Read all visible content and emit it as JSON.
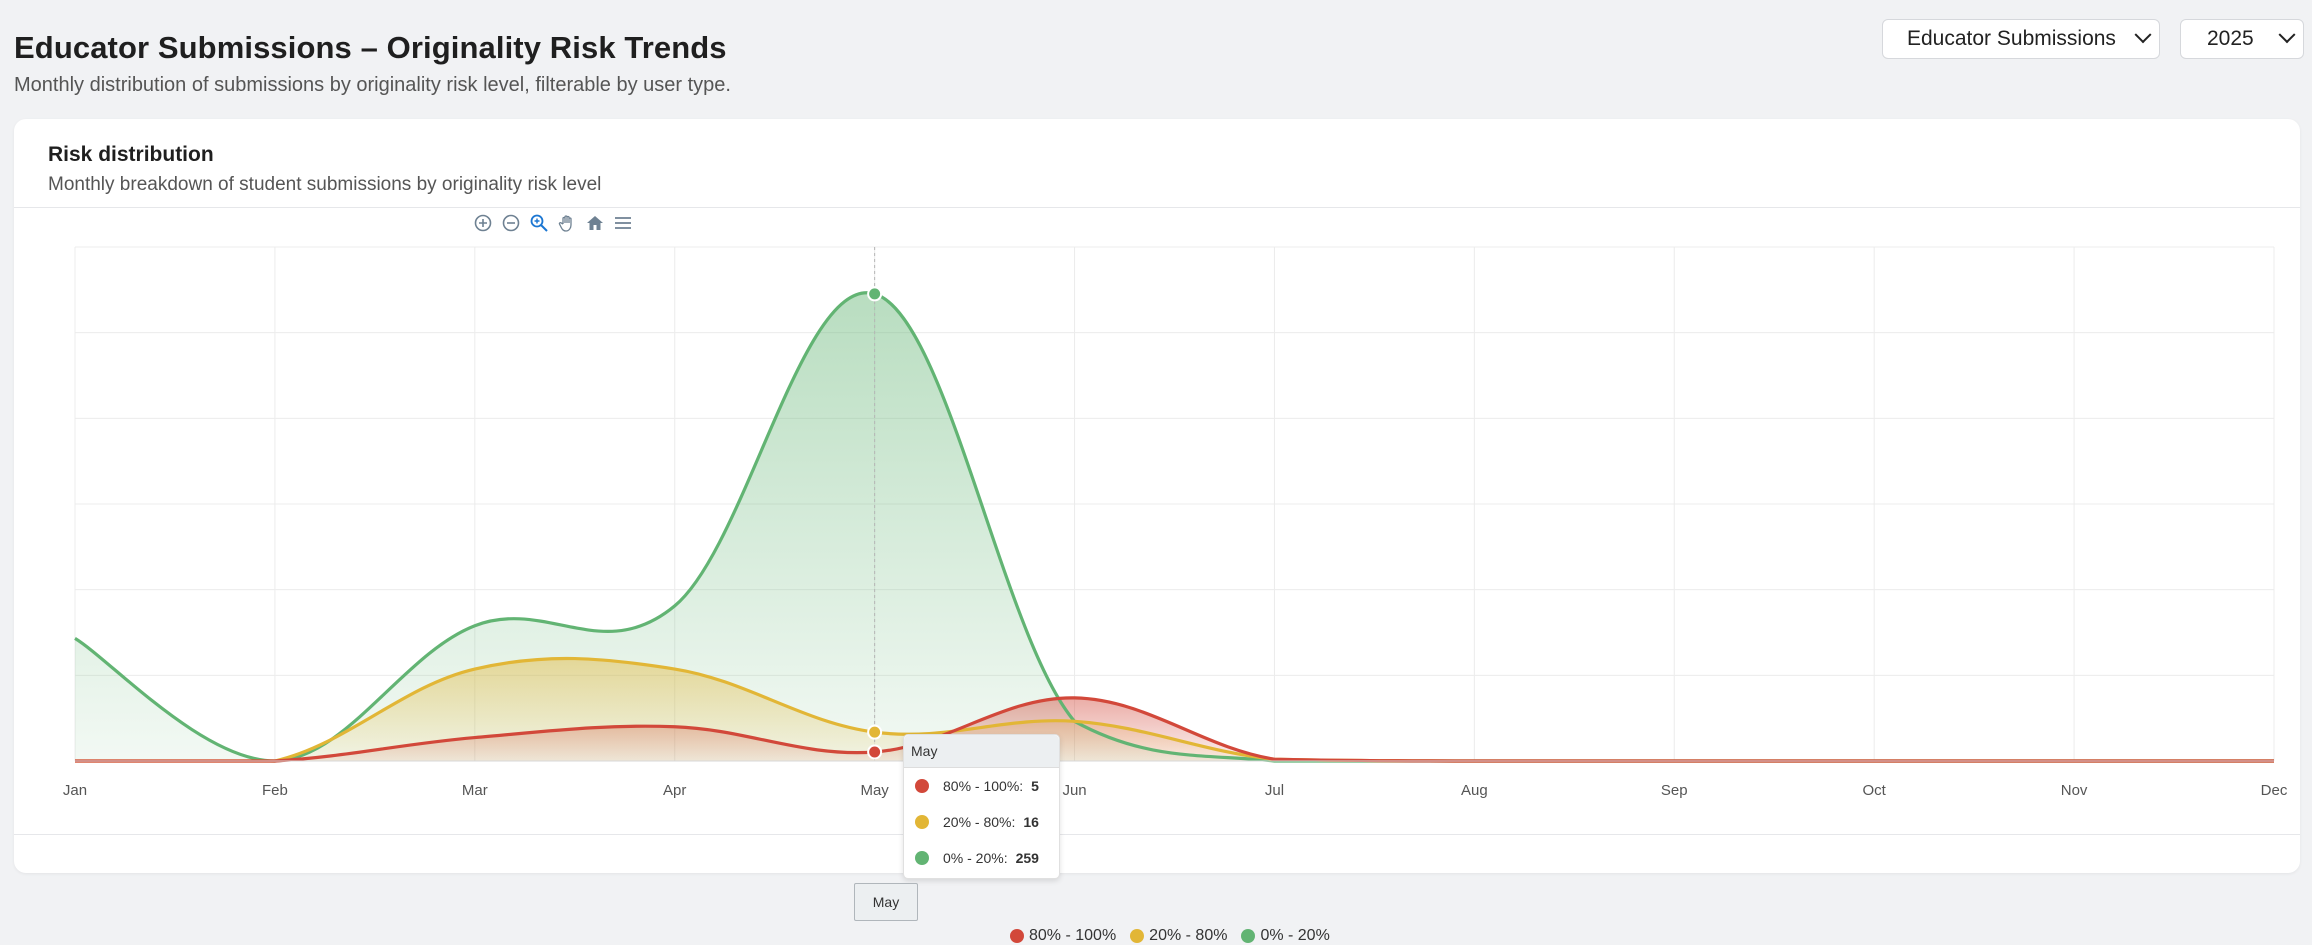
{
  "header": {
    "title": "Educator Submissions – Originality Risk Trends",
    "subtitle": "Monthly distribution of submissions by originality risk level, filterable by user type."
  },
  "filters": {
    "user_type": "Educator Submissions",
    "year": "2025"
  },
  "card": {
    "title": "Risk distribution",
    "subtitle": "Monthly breakdown of student submissions by originality risk level"
  },
  "toolbar": [
    "zoom-in",
    "zoom-out",
    "selection-zoom",
    "pan",
    "reset-zoom",
    "menu"
  ],
  "tooltip": {
    "title": "May",
    "rows": [
      {
        "label": "80% - 100%:",
        "value": "5"
      },
      {
        "label": "20% - 80%:",
        "value": "16"
      },
      {
        "label": "0% - 20%:",
        "value": "259"
      }
    ]
  },
  "crosshair_label": "May",
  "chart_data": {
    "type": "area",
    "curve": "smooth",
    "categories": [
      "Jan",
      "Feb",
      "Mar",
      "Apr",
      "May",
      "Jun",
      "Jul",
      "Aug",
      "Sep",
      "Oct",
      "Nov",
      "Dec"
    ],
    "ylim": [
      0,
      285
    ],
    "series": [
      {
        "name": "80% - 100%",
        "color": "#d2483a",
        "values": [
          0,
          0,
          13,
          19,
          5,
          35,
          1,
          0,
          0,
          0,
          0,
          0
        ]
      },
      {
        "name": "20% - 80%",
        "color": "#e2b636",
        "values": [
          0,
          0,
          51,
          51,
          16,
          22,
          1,
          0,
          0,
          0,
          0,
          0
        ]
      },
      {
        "name": "0% - 20%",
        "color": "#62b473",
        "values": [
          68,
          0,
          75,
          86,
          259,
          22,
          0,
          0,
          0,
          0,
          0,
          0
        ]
      }
    ],
    "highlight_index": 4,
    "grid": true,
    "legend": "bottom-center"
  }
}
